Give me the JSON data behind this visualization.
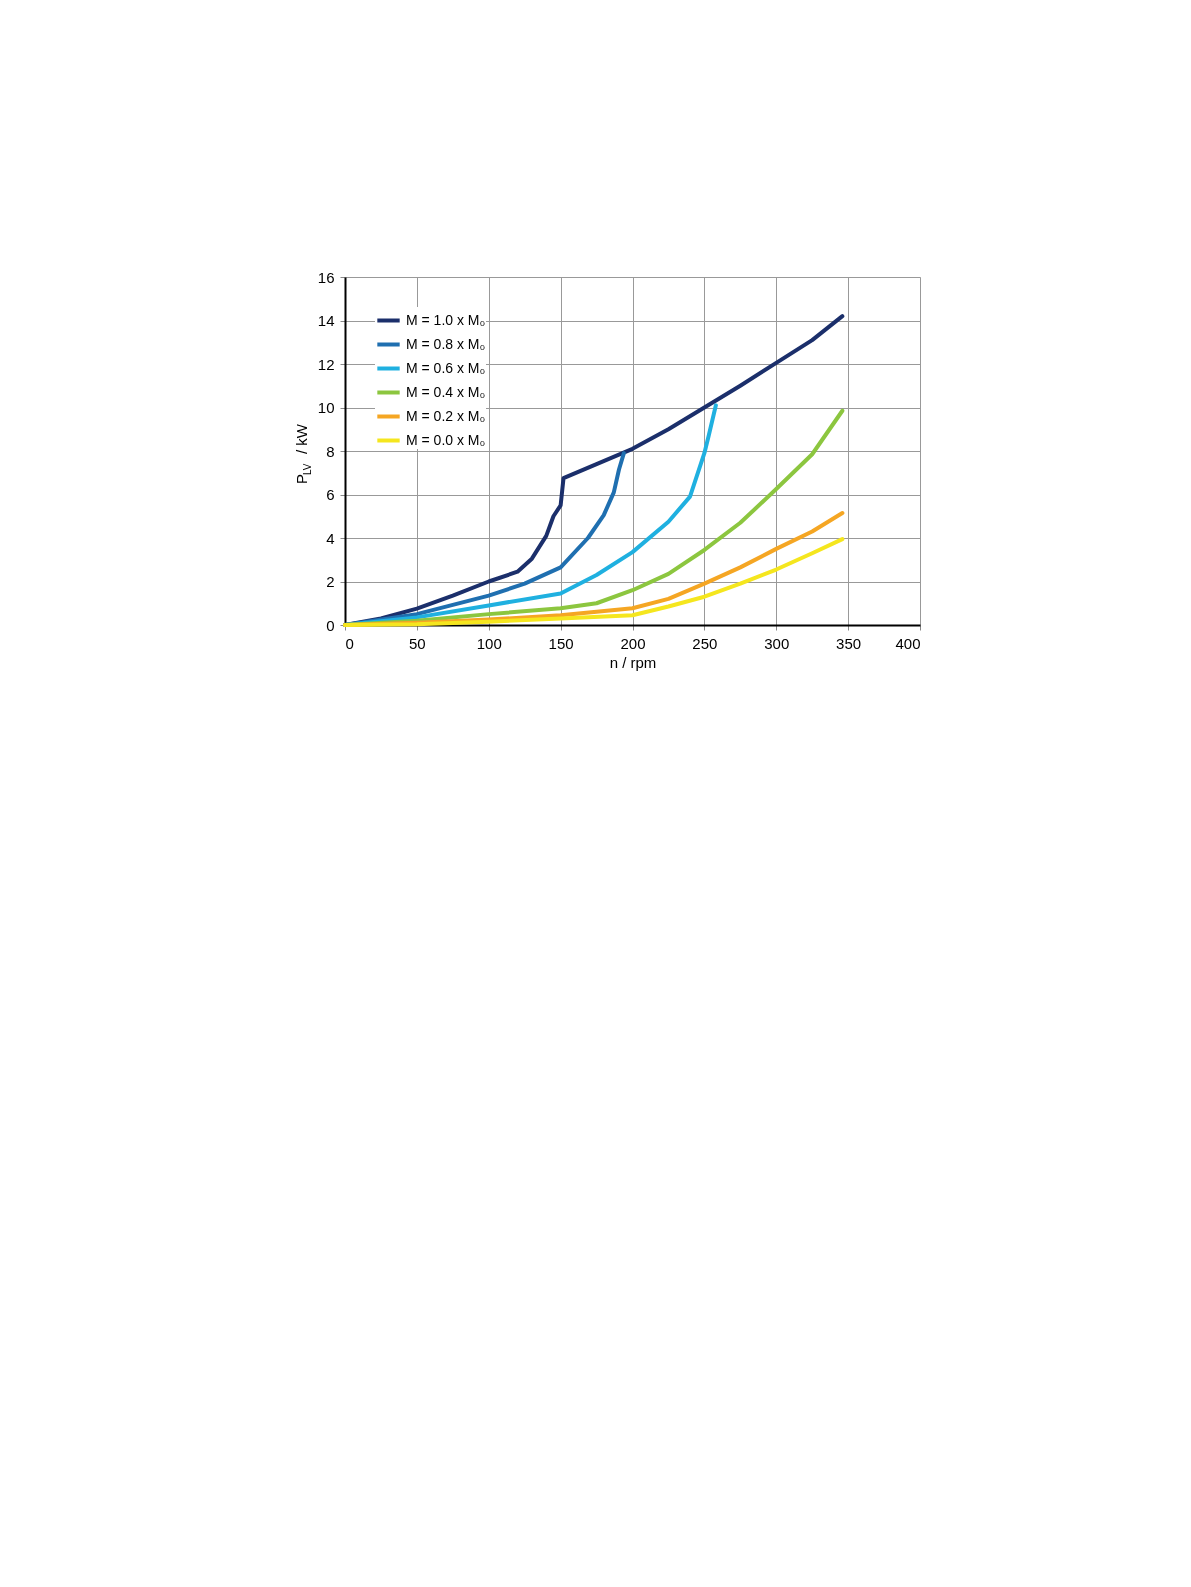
{
  "chart_data": {
    "type": "line",
    "xlabel": "n / rpm",
    "ylabel": "P$_{LV}$ / kW",
    "xlim": [
      0,
      400
    ],
    "ylim": [
      0,
      16
    ],
    "xticks": [
      0,
      50,
      100,
      150,
      200,
      250,
      300,
      350,
      400
    ],
    "yticks": [
      0,
      2,
      4,
      6,
      8,
      10,
      12,
      14,
      16
    ],
    "grid": true,
    "legend": "top left",
    "marker": "none",
    "line_style": "solid",
    "series": [
      {
        "name": "M = 1.0 x M₀",
        "color": "#1b2f6b",
        "x": [
          0,
          25,
          50,
          75,
          100,
          120,
          130,
          140,
          145,
          150,
          152,
          175,
          200,
          225,
          250,
          275,
          300,
          325,
          346
        ],
        "values": [
          0,
          0.3,
          0.75,
          1.35,
          2.0,
          2.45,
          3.05,
          4.1,
          5.0,
          5.5,
          6.75,
          7.4,
          8.1,
          9.0,
          10.0,
          11.0,
          12.05,
          13.1,
          14.2
        ]
      },
      {
        "name": "M = 0.8 x M₀",
        "color": "#1f6fb0",
        "x": [
          0,
          50,
          100,
          125,
          150,
          169,
          180,
          187,
          190.6,
          194
        ],
        "values": [
          0,
          0.5,
          1.35,
          1.9,
          2.65,
          4.0,
          5.05,
          6.1,
          7.15,
          7.9
        ]
      },
      {
        "name": "M = 0.6 x M₀",
        "color": "#1fb0e0",
        "x": [
          0,
          50,
          100,
          150,
          175,
          200,
          225,
          240,
          250,
          253,
          258
        ],
        "values": [
          0,
          0.35,
          0.9,
          1.45,
          2.3,
          3.35,
          4.75,
          5.9,
          7.9,
          8.7,
          10.1
        ]
      },
      {
        "name": "M = 0.4 x M₀",
        "color": "#8cc63f",
        "x": [
          0,
          50,
          100,
          150,
          175,
          200,
          225,
          250,
          275,
          300,
          325,
          346
        ],
        "values": [
          0,
          0.2,
          0.5,
          0.77,
          1.0,
          1.6,
          2.35,
          3.45,
          4.7,
          6.25,
          7.85,
          9.85
        ]
      },
      {
        "name": "M = 0.2 x M₀",
        "color": "#f5a623",
        "x": [
          0,
          50,
          100,
          150,
          200,
          225,
          250,
          275,
          300,
          325,
          346
        ],
        "values": [
          0,
          0.1,
          0.25,
          0.45,
          0.77,
          1.2,
          1.9,
          2.65,
          3.5,
          4.3,
          5.15
        ]
      },
      {
        "name": "M = 0.0 x M₀",
        "color": "#f5e61e",
        "x": [
          0,
          50,
          100,
          150,
          200,
          225,
          250,
          275,
          300,
          325,
          346
        ],
        "values": [
          0,
          0.03,
          0.15,
          0.3,
          0.45,
          0.85,
          1.3,
          1.9,
          2.55,
          3.3,
          3.95
        ]
      }
    ]
  }
}
